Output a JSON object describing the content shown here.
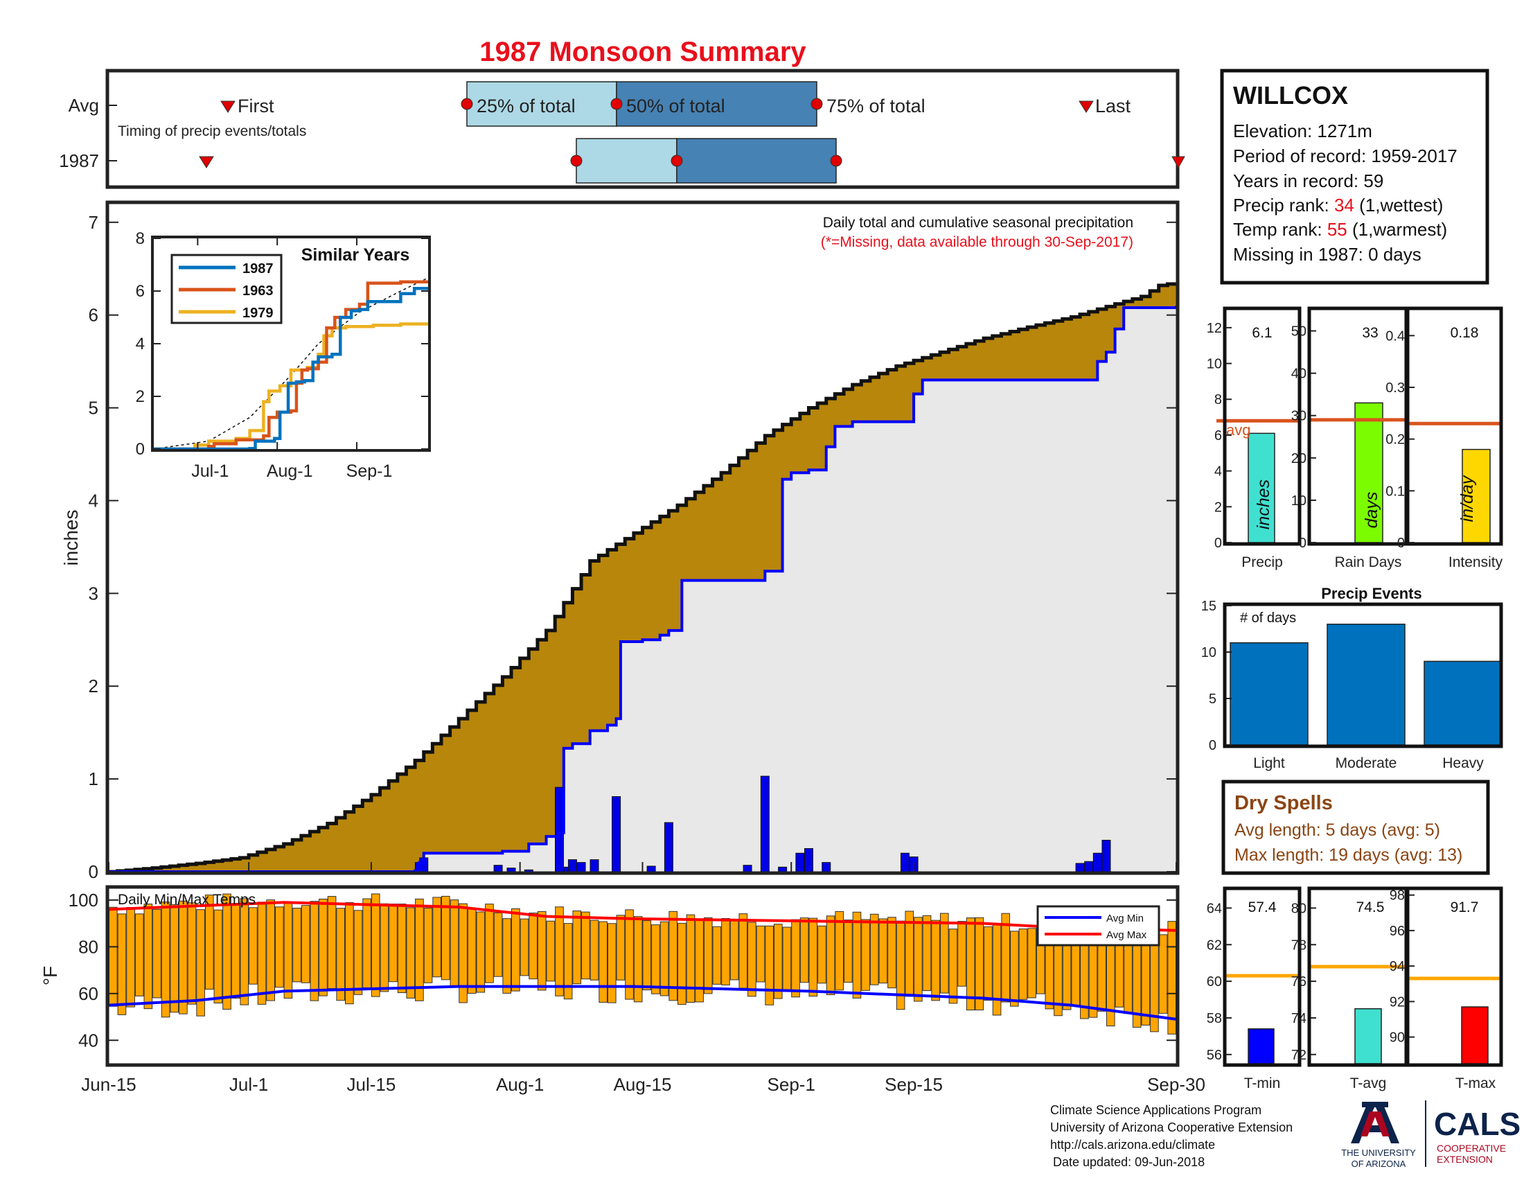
{
  "title": "1987 Monsoon Summary",
  "timing": {
    "avg_label": "Avg",
    "year_label": "1987",
    "caption": "Timing of precip events/totals",
    "first_label": "First",
    "last_label": "Last",
    "p25_label": "25% of total",
    "p50_label": "50% of total",
    "p75_label": "75% of total"
  },
  "station": {
    "name": "WILLCOX",
    "elevation": "Elevation: 1271m",
    "period": "Period of record: 1959-2017",
    "years": "Years in record: 59",
    "precip_rank_prefix": "Precip rank: ",
    "precip_rank_value": "34",
    "precip_rank_suffix": " (1,wettest)",
    "temp_rank_prefix": "Temp rank: ",
    "temp_rank_value": "55",
    "temp_rank_suffix": " (1,warmest)",
    "missing": "Missing in 1987: 0 days"
  },
  "main_chart": {
    "note1": "Daily total and cumulative seasonal precipitation",
    "note2": "(*=Missing, data available through 30-Sep-2017)",
    "ylabel": "inches",
    "ylim": [
      0,
      7.2
    ],
    "yticks": [
      "0",
      "1",
      "2",
      "3",
      "4",
      "5",
      "6",
      "7"
    ],
    "xticks": [
      "Jun-15",
      "Jul-1",
      "Jul-15",
      "Aug-1",
      "Aug-15",
      "Sep-1",
      "Sep-15",
      "Sep-30"
    ]
  },
  "inset": {
    "title": "Similar Years",
    "yticks": [
      "0",
      "2",
      "4",
      "6",
      "8"
    ],
    "xticks": [
      "Jul-1",
      "Aug-1",
      "Sep-1"
    ],
    "legend": [
      "1987",
      "1963",
      "1979"
    ]
  },
  "temps": {
    "label": "Daily Min/Max Temps",
    "ylabel": "°F",
    "yticks": [
      "40",
      "60",
      "80",
      "100"
    ],
    "legend_min": "Avg Min",
    "legend_max": "Avg Max"
  },
  "summary_bars": {
    "precip": {
      "value": "6.1",
      "unit": "inches",
      "xlabel": "Precip",
      "ticks": [
        "0",
        "2",
        "4",
        "6",
        "8",
        "10",
        "12"
      ],
      "avg_label": "avg"
    },
    "raindays": {
      "value": "33",
      "unit": "days",
      "xlabel": "Rain Days",
      "ticks": [
        "0",
        "10",
        "20",
        "30",
        "40",
        "50"
      ]
    },
    "intensity": {
      "value": "0.18",
      "unit": "in/day",
      "xlabel": "Intensity",
      "ticks": [
        "0",
        "0.1",
        "0.2",
        "0.3",
        "0.4"
      ]
    }
  },
  "events": {
    "title": "Precip Events",
    "ylabel": "# of days",
    "ticks": [
      "0",
      "5",
      "10",
      "15"
    ],
    "categories": [
      "Light",
      "Moderate",
      "Heavy"
    ]
  },
  "dry_spells": {
    "title": "Dry Spells",
    "avg_length": "Avg length: 5 days (avg: 5)",
    "max_length": "Max length: 19 days (avg: 13)"
  },
  "temp_bars": {
    "tmin": {
      "value": "57.4",
      "xlabel": "T-min",
      "ticks": [
        "56",
        "58",
        "60",
        "62",
        "64"
      ]
    },
    "tavg": {
      "value": "74.5",
      "xlabel": "T-avg",
      "ticks": [
        "72",
        "74",
        "76",
        "78",
        "80"
      ]
    },
    "tmax": {
      "value": "91.7",
      "xlabel": "T-max",
      "ticks": [
        "90",
        "92",
        "94",
        "96",
        "98"
      ]
    }
  },
  "footer": {
    "line1": "Climate Science Applications Program",
    "line2": "University of Arizona Cooperative Extension",
    "line3": "http://cals.arizona.edu/climate",
    "line4": "Date updated: 09-Jun-2018",
    "ua_line1": "THE UNIVERSITY",
    "ua_line2": "OF ARIZONA",
    "cals": "CALS",
    "cals_sub1": "COOPERATIVE",
    "cals_sub2": "EXTENSION"
  },
  "colors": {
    "title": "#e8101c",
    "avg_fill": "#b8860b",
    "obs_line": "#0000ff",
    "daily_bar": "#0000e6",
    "box_light": "#add8e6",
    "box_dark": "#4682b4",
    "marker": "#e00000",
    "temp_bar": "#ffa500",
    "avg_min": "#0000ff",
    "avg_max": "#ff0000",
    "avg_ref": "#d9541e"
  },
  "chart_data": [
    {
      "type": "area",
      "name": "cumulative",
      "x_start": "Jun-15",
      "x_end": "Sep-30",
      "average_cumulative": [
        [
          0,
          0
        ],
        [
          5,
          0.04
        ],
        [
          10,
          0.09
        ],
        [
          15,
          0.15
        ],
        [
          20,
          0.3
        ],
        [
          25,
          0.52
        ],
        [
          30,
          0.83
        ],
        [
          35,
          1.2
        ],
        [
          40,
          1.65
        ],
        [
          45,
          2.1
        ],
        [
          50,
          2.6
        ],
        [
          52,
          2.9
        ],
        [
          55,
          3.35
        ],
        [
          60,
          3.65
        ],
        [
          65,
          3.95
        ],
        [
          70,
          4.3
        ],
        [
          75,
          4.7
        ],
        [
          80,
          5.0
        ],
        [
          85,
          5.25
        ],
        [
          90,
          5.45
        ],
        [
          95,
          5.6
        ],
        [
          100,
          5.75
        ],
        [
          105,
          5.87
        ],
        [
          110,
          5.98
        ],
        [
          115,
          6.12
        ],
        [
          118,
          6.2
        ],
        [
          120,
          6.32
        ],
        [
          122,
          6.35
        ]
      ],
      "observed_cumulative": [
        [
          0,
          0
        ],
        [
          35,
          0.01
        ],
        [
          35.5,
          0.1
        ],
        [
          36,
          0.2
        ],
        [
          45,
          0.22
        ],
        [
          48,
          0.3
        ],
        [
          50,
          0.38
        ],
        [
          51.5,
          0.42
        ],
        [
          52,
          1.33
        ],
        [
          53,
          1.38
        ],
        [
          55,
          1.52
        ],
        [
          57,
          1.58
        ],
        [
          58,
          1.65
        ],
        [
          58.5,
          2.48
        ],
        [
          61,
          2.5
        ],
        [
          63,
          2.55
        ],
        [
          64,
          2.6
        ],
        [
          65.5,
          3.14
        ],
        [
          72,
          3.14
        ],
        [
          75,
          3.24
        ],
        [
          77,
          4.23
        ],
        [
          78,
          4.3
        ],
        [
          80,
          4.33
        ],
        [
          82,
          4.58
        ],
        [
          83,
          4.8
        ],
        [
          85,
          4.85
        ],
        [
          88,
          4.85
        ],
        [
          92,
          5.15
        ],
        [
          93,
          5.3
        ],
        [
          111,
          5.3
        ],
        [
          113,
          5.5
        ],
        [
          114,
          5.6
        ],
        [
          115,
          5.85
        ],
        [
          116,
          6.08
        ],
        [
          122,
          6.1
        ]
      ],
      "daily_precip": [
        [
          35.5,
          0.1
        ],
        [
          36,
          0.15
        ],
        [
          44.5,
          0.07
        ],
        [
          46,
          0.04
        ],
        [
          48,
          0.02
        ],
        [
          51.5,
          0.91
        ],
        [
          52.5,
          0.05
        ],
        [
          53,
          0.13
        ],
        [
          54,
          0.1
        ],
        [
          55.5,
          0.13
        ],
        [
          58,
          0.81
        ],
        [
          62,
          0.06
        ],
        [
          64,
          0.53
        ],
        [
          73,
          0.07
        ],
        [
          75,
          1.03
        ],
        [
          77,
          0.05
        ],
        [
          79,
          0.2
        ],
        [
          80,
          0.25
        ],
        [
          82,
          0.1
        ],
        [
          91,
          0.2
        ],
        [
          92,
          0.16
        ],
        [
          111,
          0.09
        ],
        [
          112,
          0.11
        ],
        [
          113,
          0.2
        ],
        [
          114,
          0.34
        ]
      ],
      "ylim": [
        0,
        7.2
      ]
    },
    {
      "type": "line",
      "name": "similar_years",
      "series": [
        {
          "name": "1987",
          "points": [
            [
              0,
              0
            ],
            [
              35,
              0.02
            ],
            [
              37,
              0.3
            ],
            [
              44,
              0.4
            ],
            [
              46,
              1.4
            ],
            [
              49,
              2.5
            ],
            [
              52,
              2.55
            ],
            [
              55,
              2.6
            ],
            [
              58,
              3.3
            ],
            [
              60,
              3.5
            ],
            [
              65,
              3.6
            ],
            [
              68,
              5.0
            ],
            [
              72,
              5.25
            ],
            [
              75,
              5.3
            ],
            [
              78,
              5.6
            ],
            [
              90,
              5.9
            ],
            [
              95,
              6.1
            ],
            [
              100,
              6.1
            ]
          ]
        },
        {
          "name": "1963",
          "points": [
            [
              0,
              0
            ],
            [
              20,
              0.1
            ],
            [
              22,
              0.2
            ],
            [
              30,
              0.35
            ],
            [
              40,
              0.5
            ],
            [
              42,
              1.2
            ],
            [
              45,
              1.4
            ],
            [
              50,
              1.45
            ],
            [
              52,
              2.5
            ],
            [
              54,
              3.0
            ],
            [
              56,
              3.05
            ],
            [
              60,
              3.3
            ],
            [
              63,
              4.6
            ],
            [
              66,
              5.0
            ],
            [
              70,
              5.3
            ],
            [
              75,
              5.5
            ],
            [
              78,
              6.3
            ],
            [
              90,
              6.35
            ],
            [
              100,
              6.35
            ]
          ]
        },
        {
          "name": "1979",
          "points": [
            [
              0,
              0
            ],
            [
              15,
              0.15
            ],
            [
              20,
              0.3
            ],
            [
              30,
              0.4
            ],
            [
              35,
              0.7
            ],
            [
              40,
              1.8
            ],
            [
              42,
              2.2
            ],
            [
              46,
              2.4
            ],
            [
              50,
              3.0
            ],
            [
              56,
              3.1
            ],
            [
              60,
              3.6
            ],
            [
              62,
              4.3
            ],
            [
              65,
              4.6
            ],
            [
              70,
              4.65
            ],
            [
              80,
              4.7
            ],
            [
              90,
              4.75
            ],
            [
              100,
              4.75
            ]
          ]
        }
      ],
      "average": [
        [
          0,
          0
        ],
        [
          20,
          0.3
        ],
        [
          35,
          1.2
        ],
        [
          50,
          2.8
        ],
        [
          60,
          4.0
        ],
        [
          75,
          5.2
        ],
        [
          90,
          6.0
        ],
        [
          100,
          6.5
        ]
      ],
      "ylim": [
        0,
        8
      ]
    },
    {
      "type": "bar",
      "name": "daily_temps",
      "avg_min": [
        [
          0,
          55
        ],
        [
          10,
          57
        ],
        [
          20,
          61
        ],
        [
          40,
          63
        ],
        [
          60,
          63
        ],
        [
          80,
          61
        ],
        [
          100,
          58
        ],
        [
          110,
          55
        ],
        [
          122,
          49
        ]
      ],
      "avg_max": [
        [
          0,
          96
        ],
        [
          20,
          99
        ],
        [
          40,
          97
        ],
        [
          50,
          93
        ],
        [
          60,
          92
        ],
        [
          80,
          91
        ],
        [
          100,
          90
        ],
        [
          110,
          88
        ],
        [
          122,
          87
        ]
      ],
      "ylim": [
        30,
        105
      ]
    },
    {
      "type": "bar",
      "name": "precip_summary",
      "categories": [
        "Precip",
        "Rain Days",
        "Intensity"
      ],
      "values": [
        6.1,
        33,
        0.18
      ],
      "averages": [
        6.8,
        29,
        0.23
      ],
      "ylims": [
        [
          0,
          13
        ],
        [
          0,
          55
        ],
        [
          0,
          0.45
        ]
      ]
    },
    {
      "type": "bar",
      "name": "precip_events",
      "categories": [
        "Light",
        "Moderate",
        "Heavy"
      ],
      "values": [
        11,
        13,
        9
      ],
      "ylim": [
        0,
        15
      ]
    },
    {
      "type": "bar",
      "name": "temp_summary",
      "categories": [
        "T-min",
        "T-avg",
        "T-max"
      ],
      "values": [
        57.4,
        74.5,
        91.7
      ],
      "averages": [
        60.3,
        76.8,
        93.3
      ],
      "ylims": [
        [
          55.5,
          65
        ],
        [
          71.5,
          81
        ],
        [
          88.5,
          98.3
        ]
      ]
    }
  ]
}
